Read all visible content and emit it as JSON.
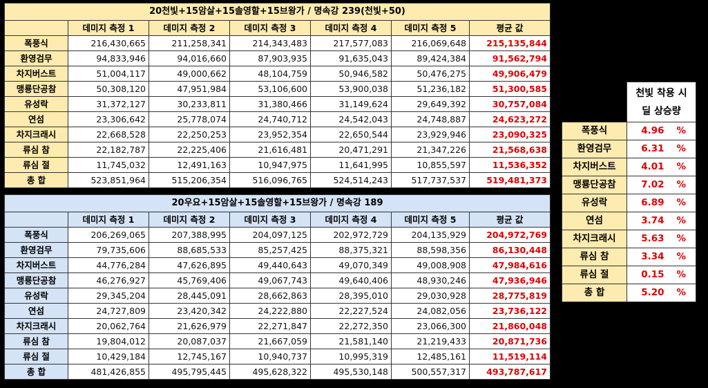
{
  "table1": {
    "title": "20천빛+15암살+15솔영할+15브왕가 / 명속강 239(천빛+50)",
    "headers": [
      "데미지 측정 1",
      "데미지 측정 2",
      "데미지 측정 3",
      "데미지 측정 4",
      "데미지 측정 5",
      "평균 값"
    ],
    "rows": [
      {
        "name": "폭풍식",
        "v": [
          "216,430,665",
          "211,258,341",
          "214,343,483",
          "217,577,083",
          "216,069,648"
        ],
        "avg": "215,135,844"
      },
      {
        "name": "환영검무",
        "v": [
          "94,833,946",
          "94,016,660",
          "87,903,935",
          "91,635,043",
          "89,424,384"
        ],
        "avg": "91,562,794"
      },
      {
        "name": "차지버스트",
        "v": [
          "51,004,117",
          "49,000,662",
          "48,104,759",
          "50,946,582",
          "50,476,275"
        ],
        "avg": "49,906,479"
      },
      {
        "name": "맹룡단공참",
        "v": [
          "50,308,120",
          "47,951,984",
          "53,106,600",
          "53,900,038",
          "51,236,182"
        ],
        "avg": "51,300,585"
      },
      {
        "name": "유성락",
        "v": [
          "31,372,127",
          "30,233,811",
          "31,380,466",
          "31,149,624",
          "29,649,392"
        ],
        "avg": "30,757,084"
      },
      {
        "name": "연섬",
        "v": [
          "23,306,642",
          "25,778,074",
          "24,740,712",
          "24,542,043",
          "24,748,887"
        ],
        "avg": "24,623,272"
      },
      {
        "name": "차지크래시",
        "v": [
          "22,668,528",
          "22,250,253",
          "23,952,354",
          "22,650,544",
          "23,929,946"
        ],
        "avg": "23,090,325"
      },
      {
        "name": "류심 참",
        "v": [
          "22,182,787",
          "22,225,406",
          "21,616,481",
          "20,471,291",
          "21,347,226"
        ],
        "avg": "21,568,638"
      },
      {
        "name": "류심 절",
        "v": [
          "11,745,032",
          "12,491,163",
          "10,947,975",
          "11,641,995",
          "10,855,597"
        ],
        "avg": "11,536,352"
      },
      {
        "name": "총   합",
        "v": [
          "523,851,964",
          "515,206,354",
          "516,096,765",
          "524,514,243",
          "517,737,537"
        ],
        "avg": "519,481,373"
      }
    ]
  },
  "table2": {
    "title": "20우요+15암살+15솔영할+15브왕가 / 명속강 189",
    "headers": [
      "데미지 측정 1",
      "데미지 측정 2",
      "데미지 측정 3",
      "데미지 측정 4",
      "데미지 측정 5",
      "평균 값"
    ],
    "rows": [
      {
        "name": "폭풍식",
        "v": [
          "206,269,065",
          "207,388,995",
          "204,097,125",
          "202,972,729",
          "204,135,929"
        ],
        "avg": "204,972,769"
      },
      {
        "name": "환영검무",
        "v": [
          "79,735,606",
          "88,685,533",
          "85,257,425",
          "88,375,321",
          "88,598,356"
        ],
        "avg": "86,130,448"
      },
      {
        "name": "차지버스트",
        "v": [
          "44,776,284",
          "47,626,895",
          "49,440,643",
          "49,070,349",
          "49,008,908"
        ],
        "avg": "47,984,616"
      },
      {
        "name": "맹룡단공참",
        "v": [
          "46,276,927",
          "45,769,406",
          "49,067,743",
          "49,640,406",
          "48,930,246"
        ],
        "avg": "47,936,946"
      },
      {
        "name": "유성락",
        "v": [
          "29,345,204",
          "28,445,091",
          "28,662,863",
          "28,395,010",
          "29,030,928"
        ],
        "avg": "28,775,819"
      },
      {
        "name": "연섬",
        "v": [
          "24,727,809",
          "23,420,342",
          "24,222,880",
          "22,227,524",
          "24,082,056"
        ],
        "avg": "23,736,122"
      },
      {
        "name": "차지크래시",
        "v": [
          "20,062,764",
          "21,626,979",
          "22,271,847",
          "22,272,350",
          "23,066,300"
        ],
        "avg": "21,860,048"
      },
      {
        "name": "류심 참",
        "v": [
          "19,804,012",
          "20,087,037",
          "21,667,059",
          "21,581,140",
          "21,219,433"
        ],
        "avg": "20,871,736"
      },
      {
        "name": "류심 절",
        "v": [
          "10,429,184",
          "12,745,167",
          "10,940,737",
          "10,995,319",
          "12,485,161"
        ],
        "avg": "11,519,114"
      },
      {
        "name": "총   합",
        "v": [
          "481,426,855",
          "495,795,445",
          "495,628,322",
          "495,530,148",
          "500,557,317"
        ],
        "avg": "493,787,617"
      }
    ]
  },
  "increase": {
    "header": "천빛 착용 시 딜 상승량",
    "rows": [
      {
        "name": "폭풍식",
        "pct": "4.96",
        "unit": "%"
      },
      {
        "name": "환영검무",
        "pct": "6.31",
        "unit": "%"
      },
      {
        "name": "차지버스트",
        "pct": "4.01",
        "unit": "%"
      },
      {
        "name": "맹룡단공참",
        "pct": "7.02",
        "unit": "%"
      },
      {
        "name": "유성락",
        "pct": "6.89",
        "unit": "%"
      },
      {
        "name": "연섬",
        "pct": "3.74",
        "unit": "%"
      },
      {
        "name": "차지크래시",
        "pct": "5.63",
        "unit": "%"
      },
      {
        "name": "류심 참",
        "pct": "3.34",
        "unit": "%"
      },
      {
        "name": "류심 절",
        "pct": "0.15",
        "unit": "%"
      },
      {
        "name": "총   합",
        "pct": "5.20",
        "unit": "%"
      }
    ]
  }
}
